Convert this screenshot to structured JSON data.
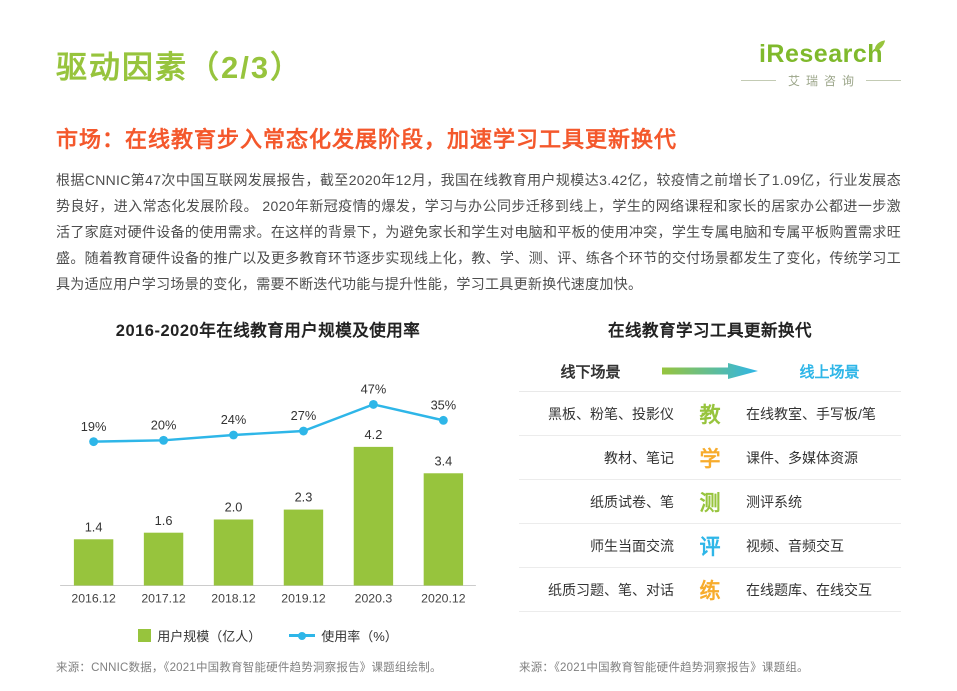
{
  "page": {
    "title": "驱动因素（2/3）",
    "subtitle": "市场：在线教育步入常态化发展阶段，加速学习工具更新换代",
    "body": "根据CNNIC第47次中国互联网发展报告，截至2020年12月，我国在线教育用户规模达3.42亿，较疫情之前增长了1.09亿，行业发展态势良好，进入常态化发展阶段。 2020年新冠疫情的爆发，学习与办公同步迁移到线上，学生的网络课程和家长的居家办公都进一步激活了家庭对硬件设备的使用需求。在这样的背景下，为避免家长和学生对电脑和平板的使用冲突，学生专属电脑和专属平板购置需求旺盛。随着教育硬件设备的推广以及更多教育环节逐步实现线上化，教、学、测、评、练各个环节的交付场景都发生了变化，传统学习工具为适应用户学习场景的变化，需要不断迭代功能与提升性能，学习工具更新换代速度加快。",
    "accent_green": "#97C43D",
    "accent_orange": "#F4582C"
  },
  "logo": {
    "brand": "iResearch",
    "brand_cn": "艾瑞咨询"
  },
  "chart_data": {
    "type": "bar",
    "title": "2016-2020年在线教育用户规模及使用率",
    "categories": [
      "2016.12",
      "2017.12",
      "2018.12",
      "2019.12",
      "2020.3",
      "2020.12"
    ],
    "series": [
      {
        "name": "用户规模（亿人）",
        "type": "bar",
        "values": [
          1.4,
          1.6,
          2.0,
          2.3,
          4.2,
          3.4
        ],
        "color": "#97C43D"
      },
      {
        "name": "使用率（%）",
        "type": "line",
        "values": [
          19,
          20,
          24,
          27,
          47,
          35
        ],
        "unit": "%",
        "color": "#2EB6E8"
      }
    ],
    "ylim": [
      0,
      4.5
    ],
    "grid": "off",
    "legend_position": "bottom",
    "source": "来源：CNNIC数据，《2021中国教育智能硬件趋势洞察报告》课题组绘制。"
  },
  "tools_panel": {
    "title": "在线教育学习工具更新换代",
    "header": {
      "offline": "线下场景",
      "online": "线上场景"
    },
    "arrow": {
      "from": "#97C43D",
      "to": "#2EB6E8"
    },
    "rows": [
      {
        "offline": "黑板、粉笔、投影仪",
        "stage": "教",
        "stage_color": "#97C43D",
        "online": "在线教室、手写板/笔"
      },
      {
        "offline": "教材、笔记",
        "stage": "学",
        "stage_color": "#F7AC2D",
        "online": "课件、多媒体资源"
      },
      {
        "offline": "纸质试卷、笔",
        "stage": "测",
        "stage_color": "#97C43D",
        "online": "测评系统"
      },
      {
        "offline": "师生当面交流",
        "stage": "评",
        "stage_color": "#2EB6E8",
        "online": "视频、音频交互"
      },
      {
        "offline": "纸质习题、笔、对话",
        "stage": "练",
        "stage_color": "#F7AC2D",
        "online": "在线题库、在线交互"
      }
    ],
    "source": "来源：《2021中国教育智能硬件趋势洞察报告》课题组。"
  }
}
